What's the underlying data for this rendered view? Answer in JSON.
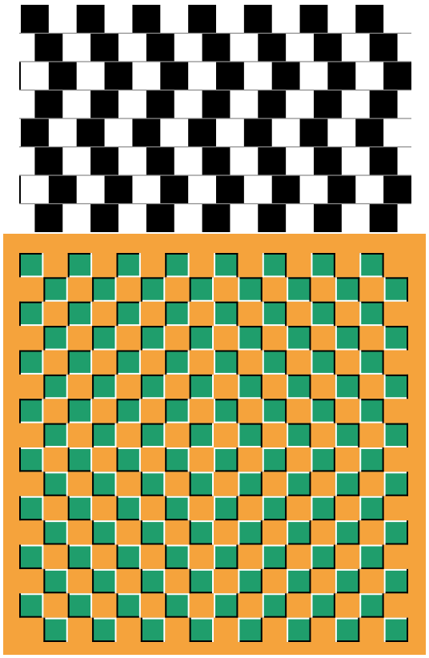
{
  "figure": {
    "background": "#ffffff",
    "cafe_wall": {
      "name": "cafe-wall-illusion",
      "tile_dark": "#000000",
      "tile_light": "#ffffff",
      "mortar_color": "#8c8c8c",
      "rows": 8,
      "columns": 7,
      "row_shift_pattern": [
        0,
        0.25,
        0.5,
        0.25,
        0,
        0.25,
        0.5,
        0.25
      ]
    },
    "checker_illusion": {
      "name": "bulging-checkerboard-illusion",
      "frame_color": "#f5a33c",
      "cell_a": "#1f9e6c",
      "cell_b": "#f5a33c",
      "edge_light": "#ffffff",
      "edge_dark": "#000000",
      "rows": 16,
      "columns": 16
    }
  }
}
